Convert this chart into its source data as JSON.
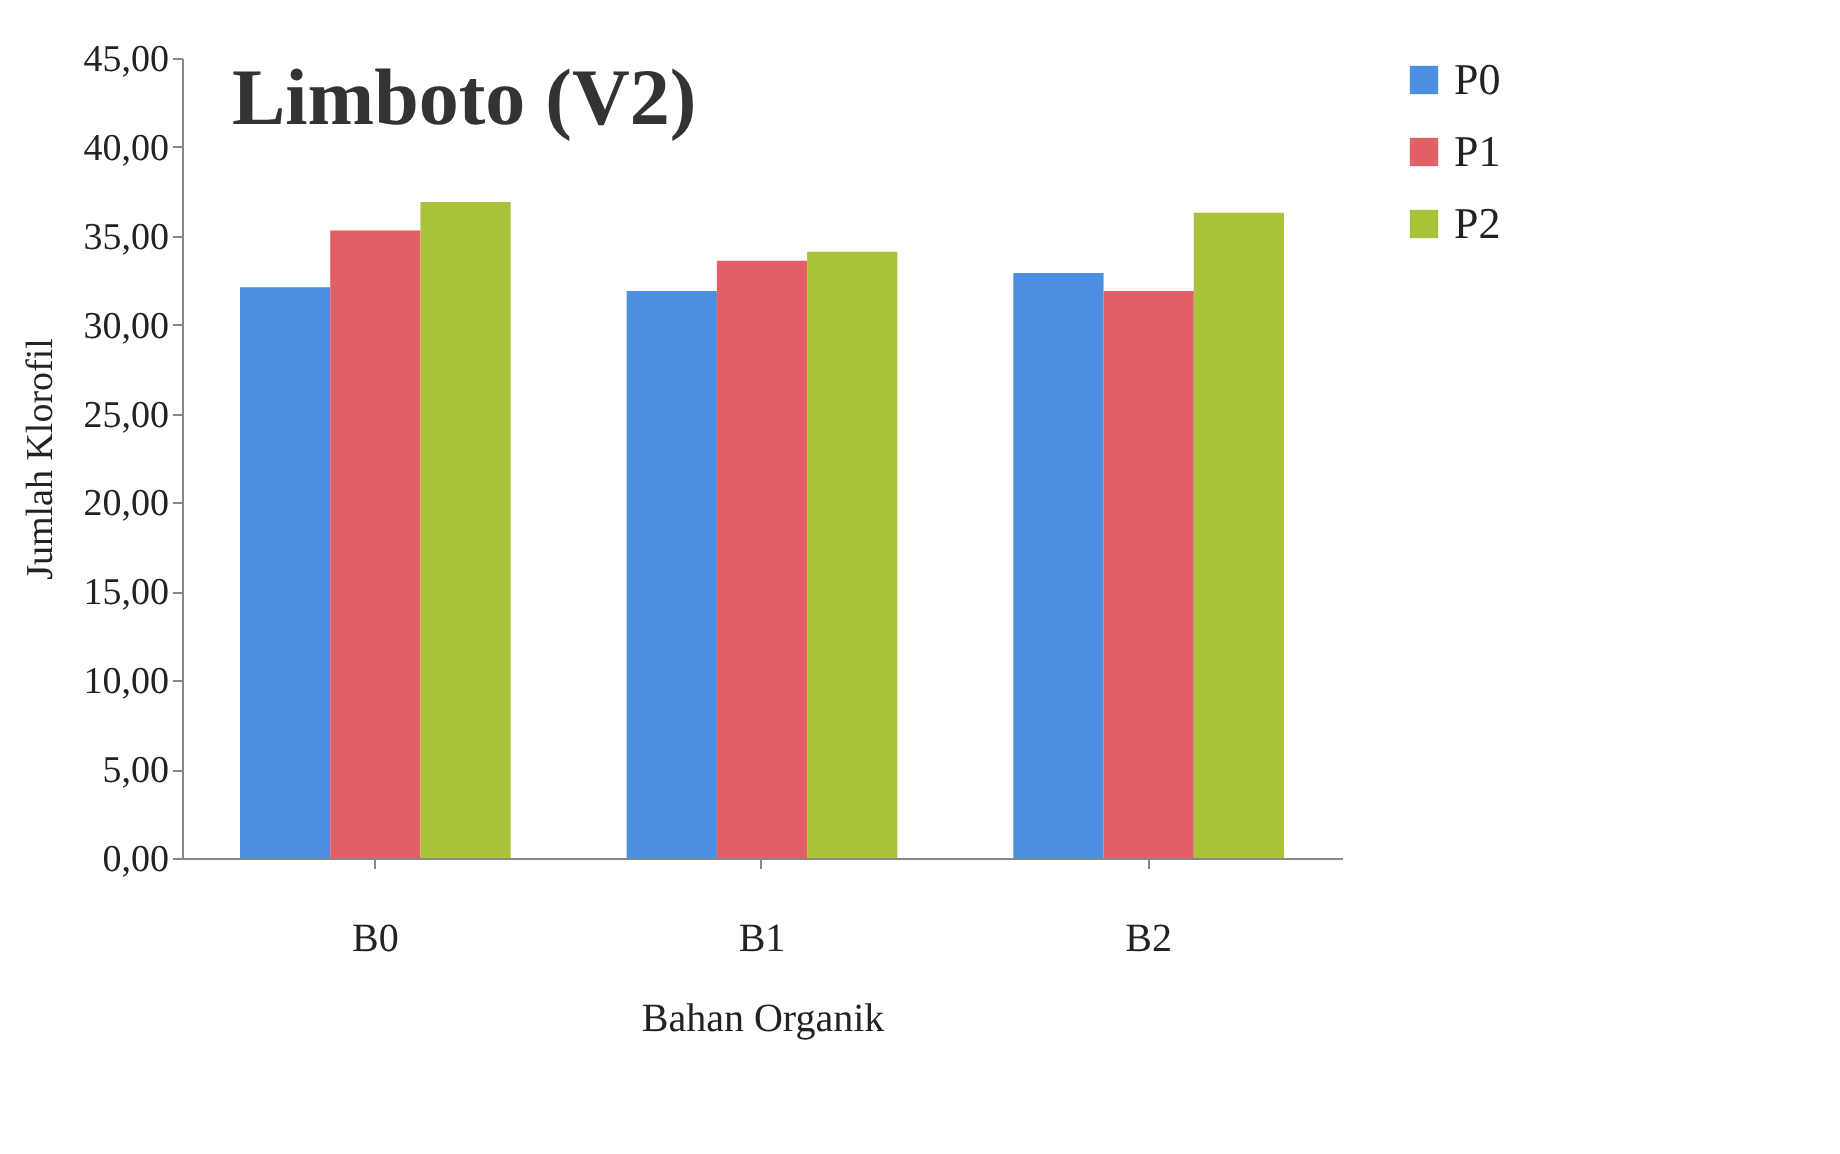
{
  "chart_data": {
    "type": "bar",
    "title": "Limboto (V2)",
    "xlabel": "Bahan Organik",
    "ylabel": "Jumlah Klorofil",
    "categories": [
      "B0",
      "B1",
      "B2"
    ],
    "series": [
      {
        "name": "P0",
        "color": "#4a8fe0",
        "values": [
          32.1,
          31.9,
          32.9
        ]
      },
      {
        "name": "P1",
        "color": "#e06066",
        "values": [
          35.3,
          33.6,
          31.9
        ]
      },
      {
        "name": "P2",
        "color": "#a8c33a",
        "values": [
          36.9,
          34.1,
          36.3
        ]
      }
    ],
    "ylim": [
      0,
      45
    ],
    "yticks": [
      {
        "value": 0,
        "label": "0,00"
      },
      {
        "value": 5,
        "label": "5,00"
      },
      {
        "value": 10,
        "label": "10,00"
      },
      {
        "value": 15,
        "label": "15,00"
      },
      {
        "value": 20,
        "label": "20,00"
      },
      {
        "value": 25,
        "label": "25,00"
      },
      {
        "value": 30,
        "label": "30,00"
      },
      {
        "value": 35,
        "label": "35,00"
      },
      {
        "value": 40,
        "label": "40,00"
      },
      {
        "value": 45,
        "label": "45,00"
      }
    ],
    "grid": false,
    "legend": "right"
  }
}
